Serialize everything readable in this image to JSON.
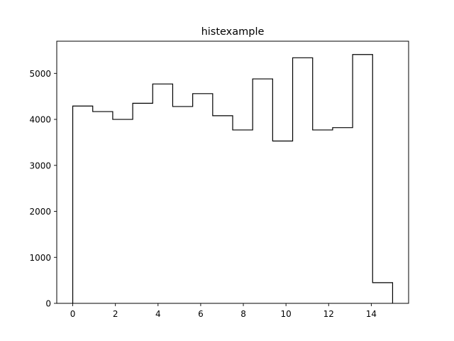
{
  "chart_data": {
    "type": "histogram",
    "title": "histexample",
    "xlabel": "",
    "ylabel": "",
    "histtype": "step",
    "line_color": "#000000",
    "bin_edges": [
      0,
      0.9375,
      1.875,
      2.8125,
      3.75,
      4.6875,
      5.625,
      6.5625,
      7.5,
      8.4375,
      9.375,
      10.3125,
      11.25,
      12.1875,
      13.125,
      14.0625,
      15
    ],
    "counts": [
      4290,
      4170,
      4000,
      4350,
      4770,
      4280,
      4560,
      4080,
      3770,
      4880,
      3530,
      5340,
      3770,
      3820,
      5410,
      450
    ],
    "xlim": [
      -0.75,
      15.75
    ],
    "ylim": [
      0,
      5700
    ],
    "x_ticks": [
      0,
      2,
      4,
      6,
      8,
      10,
      12,
      14
    ],
    "y_ticks": [
      0,
      1000,
      2000,
      3000,
      4000,
      5000
    ],
    "x_tick_labels": [
      "0",
      "2",
      "4",
      "6",
      "8",
      "10",
      "12",
      "14"
    ],
    "y_tick_labels": [
      "0",
      "1000",
      "2000",
      "3000",
      "4000",
      "5000"
    ],
    "grid": false,
    "legend": "none"
  }
}
